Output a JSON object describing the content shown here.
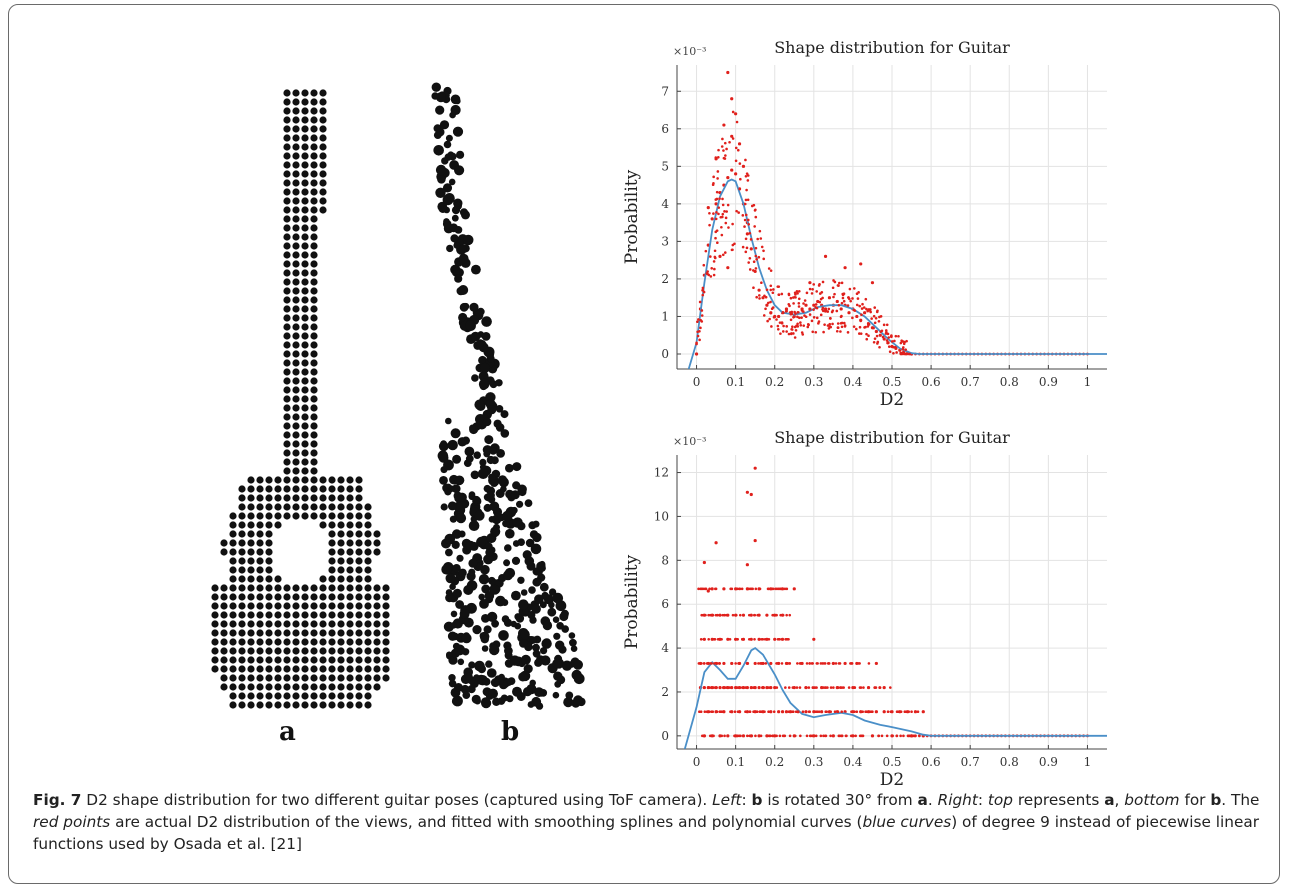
{
  "figure": {
    "label_a": "a",
    "label_b": "b"
  },
  "caption": {
    "fig_label": "Fig. 7",
    "p1": " D2 shape distribution for two different guitar poses (captured using ToF camera). ",
    "left": "Left",
    "p2": ": ",
    "b1": "b",
    "p3": " is rotated 30° from ",
    "a1": "a",
    "p4": ". ",
    "right": "Right",
    "p5": ": ",
    "top": "top",
    "p6": " represents ",
    "a2": "a",
    "p7": ", ",
    "bottom": "bottom",
    "p8": " for ",
    "b2": "b",
    "p9": ". The ",
    "red_points": "red points",
    "p10": " are actual D2 distribution of the views, and fitted with smoothing splines and polynomial curves (",
    "blue_curves": "blue curves",
    "p11": ") of degree 9 instead of piecewise linear functions used by Osada et al.  [21]"
  },
  "colors": {
    "points": "#e0201c",
    "curve": "#4a8fc8",
    "grid": "#e3e3e3",
    "guitar_dots": "#111111"
  },
  "chart_data": [
    {
      "type": "scatter",
      "title": "Shape distribution for Guitar",
      "xlabel": "D2",
      "ylabel": "Probability",
      "y_exponent_label": "×10⁻³",
      "xlim": [
        -0.05,
        1.05
      ],
      "ylim": [
        -0.4,
        7.7
      ],
      "xticks": [
        "0",
        "0.1",
        "0.2",
        "0.3",
        "0.4",
        "0.5",
        "0.6",
        "0.7",
        "0.8",
        "0.9",
        "1"
      ],
      "xtick_values": [
        0,
        0.1,
        0.2,
        0.3,
        0.4,
        0.5,
        0.6,
        0.7,
        0.8,
        0.9,
        1
      ],
      "yticks": [
        "0",
        "1",
        "2",
        "3",
        "4",
        "5",
        "6",
        "7"
      ],
      "ytick_values": [
        0,
        1,
        2,
        3,
        4,
        5,
        6,
        7
      ],
      "grid": true,
      "series": [
        {
          "kind": "points",
          "x": [
            0.0,
            0.01,
            0.02,
            0.03,
            0.04,
            0.05,
            0.06,
            0.07,
            0.08,
            0.09,
            0.1,
            0.11,
            0.12,
            0.13,
            0.14,
            0.15,
            0.16,
            0.17,
            0.18,
            0.19,
            0.2,
            0.21,
            0.22,
            0.23,
            0.24,
            0.25,
            0.26,
            0.27,
            0.28,
            0.29,
            0.3,
            0.31,
            0.32,
            0.33,
            0.34,
            0.35,
            0.36,
            0.37,
            0.38,
            0.39,
            0.4,
            0.41,
            0.42,
            0.43,
            0.44,
            0.45,
            0.46,
            0.47,
            0.48,
            0.49,
            0.5,
            0.51,
            0.52,
            0.53,
            0.54,
            0.55,
            0.03,
            0.05,
            0.07,
            0.08,
            0.09,
            0.1,
            0.11,
            0.13,
            0.06,
            0.12,
            0.33,
            0.42,
            0.38,
            0.45,
            0.29,
            0.08,
            0.09
          ],
          "y": [
            0.0,
            1.2,
            2.1,
            2.9,
            3.6,
            4.0,
            4.3,
            4.5,
            4.7,
            4.9,
            4.8,
            4.4,
            4.0,
            3.5,
            2.8,
            2.2,
            1.7,
            1.5,
            1.3,
            1.1,
            1.0,
            1.0,
            1.1,
            1.2,
            1.1,
            1.0,
            1.1,
            1.2,
            1.3,
            1.2,
            1.3,
            1.4,
            1.3,
            1.2,
            1.5,
            1.3,
            1.4,
            1.2,
            1.3,
            1.1,
            1.2,
            1.0,
            0.9,
            1.1,
            0.8,
            0.7,
            0.6,
            0.5,
            0.4,
            0.3,
            0.2,
            0.15,
            0.1,
            0.05,
            0.02,
            0.0,
            3.9,
            5.2,
            6.1,
            7.5,
            6.8,
            6.4,
            5.6,
            3.2,
            2.6,
            5.0,
            2.6,
            2.4,
            2.3,
            1.9,
            1.9,
            2.3,
            5.8
          ],
          "color": "#e0201c"
        },
        {
          "kind": "curve",
          "x": [
            -0.02,
            0.0,
            0.02,
            0.04,
            0.06,
            0.08,
            0.09,
            0.1,
            0.12,
            0.14,
            0.16,
            0.18,
            0.2,
            0.22,
            0.25,
            0.28,
            0.31,
            0.34,
            0.37,
            0.4,
            0.43,
            0.46,
            0.49,
            0.52,
            0.55,
            0.57,
            0.6,
            0.8,
            1.0,
            1.05
          ],
          "y": [
            -0.4,
            0.3,
            1.9,
            3.3,
            4.2,
            4.6,
            4.65,
            4.6,
            4.0,
            3.1,
            2.3,
            1.7,
            1.3,
            1.1,
            1.05,
            1.1,
            1.25,
            1.3,
            1.3,
            1.2,
            1.0,
            0.7,
            0.4,
            0.15,
            0.02,
            0.0,
            0.0,
            0.0,
            0.0,
            0.0
          ],
          "color": "#4a8fc8"
        }
      ]
    },
    {
      "type": "scatter",
      "title": "Shape distribution for Guitar",
      "xlabel": "D2",
      "ylabel": "Probability",
      "y_exponent_label": "×10⁻³",
      "xlim": [
        -0.05,
        1.05
      ],
      "ylim": [
        -0.6,
        12.8
      ],
      "xticks": [
        "0",
        "0.1",
        "0.2",
        "0.3",
        "0.4",
        "0.5",
        "0.6",
        "0.7",
        "0.8",
        "0.9",
        "1"
      ],
      "xtick_values": [
        0,
        0.1,
        0.2,
        0.3,
        0.4,
        0.5,
        0.6,
        0.7,
        0.8,
        0.9,
        1
      ],
      "yticks": [
        "0",
        "2",
        "4",
        "6",
        "8",
        "10",
        "12"
      ],
      "ytick_values": [
        0,
        2,
        4,
        6,
        8,
        10,
        12
      ],
      "grid": true,
      "series": [
        {
          "kind": "points",
          "x": [
            0.01,
            0.02,
            0.03,
            0.04,
            0.05,
            0.06,
            0.07,
            0.08,
            0.09,
            0.1,
            0.11,
            0.12,
            0.13,
            0.14,
            0.15,
            0.16,
            0.17,
            0.18,
            0.19,
            0.2,
            0.22,
            0.24,
            0.26,
            0.28,
            0.3,
            0.32,
            0.34,
            0.36,
            0.38,
            0.4,
            0.42,
            0.44,
            0.46,
            0.48,
            0.5,
            0.52,
            0.54,
            0.56,
            0.58,
            0.01,
            0.03,
            0.05,
            0.07,
            0.09,
            0.11,
            0.13,
            0.15,
            0.17,
            0.19,
            0.21,
            0.23,
            0.02,
            0.04,
            0.06,
            0.08,
            0.1,
            0.12,
            0.14,
            0.16,
            0.18,
            0.2,
            0.22,
            0.02,
            0.04,
            0.06,
            0.08,
            0.1,
            0.12,
            0.14,
            0.16,
            0.18,
            0.2,
            0.22,
            0.03,
            0.05,
            0.07,
            0.09,
            0.11,
            0.13,
            0.15,
            0.17,
            0.19,
            0.21,
            0.23,
            0.04,
            0.07,
            0.1,
            0.13,
            0.16,
            0.19,
            0.22,
            0.25,
            0.02,
            0.05,
            0.13,
            0.15,
            0.03,
            0.14,
            0.13,
            0.15,
            0.25,
            0.28,
            0.32,
            0.36,
            0.4,
            0.44,
            0.48,
            0.27,
            0.35,
            0.41,
            0.3,
            0.38,
            0.46,
            0.02,
            0.04,
            0.06,
            0.08,
            0.1,
            0.12,
            0.14,
            0.16,
            0.18,
            0.2,
            0.25,
            0.3,
            0.35,
            0.4,
            0.45,
            0.5,
            0.55,
            0.58
          ],
          "y": [
            2.2,
            2.2,
            2.2,
            2.2,
            2.2,
            2.2,
            2.2,
            2.2,
            2.2,
            2.2,
            2.2,
            2.2,
            2.2,
            2.2,
            2.2,
            2.2,
            2.2,
            2.2,
            2.2,
            2.2,
            1.1,
            1.1,
            1.1,
            1.1,
            1.1,
            1.1,
            1.1,
            1.1,
            1.1,
            1.1,
            1.1,
            1.1,
            1.1,
            1.1,
            1.1,
            1.1,
            1.1,
            1.1,
            1.1,
            3.3,
            3.3,
            3.3,
            3.3,
            3.3,
            3.3,
            3.3,
            3.3,
            3.3,
            3.3,
            3.3,
            3.3,
            4.4,
            4.4,
            4.4,
            4.4,
            4.4,
            4.4,
            4.4,
            4.4,
            4.4,
            4.4,
            4.4,
            5.5,
            5.5,
            5.5,
            5.5,
            5.5,
            5.5,
            5.5,
            5.5,
            5.5,
            5.5,
            5.5,
            1.1,
            1.1,
            1.1,
            1.1,
            1.1,
            1.1,
            1.1,
            1.1,
            1.1,
            1.1,
            1.1,
            6.7,
            6.7,
            6.7,
            6.7,
            6.7,
            6.7,
            6.7,
            6.7,
            7.9,
            8.8,
            7.8,
            8.9,
            6.6,
            11.0,
            11.1,
            12.2,
            2.2,
            2.2,
            2.2,
            2.2,
            2.2,
            2.2,
            2.2,
            3.3,
            3.3,
            3.3,
            4.4,
            3.3,
            3.3,
            0.0,
            0.0,
            0.0,
            0.0,
            0.0,
            0.0,
            0.0,
            0.0,
            0.0,
            0.0,
            0.0,
            0.0,
            0.0,
            0.0,
            0.0,
            0.0,
            0.0,
            0.0
          ],
          "color": "#e0201c"
        },
        {
          "kind": "curve",
          "x": [
            -0.03,
            0.0,
            0.02,
            0.04,
            0.06,
            0.08,
            0.1,
            0.12,
            0.14,
            0.15,
            0.17,
            0.2,
            0.22,
            0.24,
            0.27,
            0.3,
            0.33,
            0.37,
            0.4,
            0.43,
            0.47,
            0.5,
            0.55,
            0.58,
            0.6,
            0.8,
            1.0,
            1.05
          ],
          "y": [
            -0.6,
            1.3,
            2.9,
            3.35,
            3.0,
            2.6,
            2.6,
            3.2,
            3.9,
            4.0,
            3.7,
            2.8,
            2.1,
            1.5,
            1.0,
            0.85,
            0.95,
            1.05,
            0.95,
            0.7,
            0.5,
            0.4,
            0.2,
            0.05,
            0.0,
            0.0,
            0.0,
            0.0
          ],
          "color": "#4a8fc8"
        }
      ]
    }
  ]
}
